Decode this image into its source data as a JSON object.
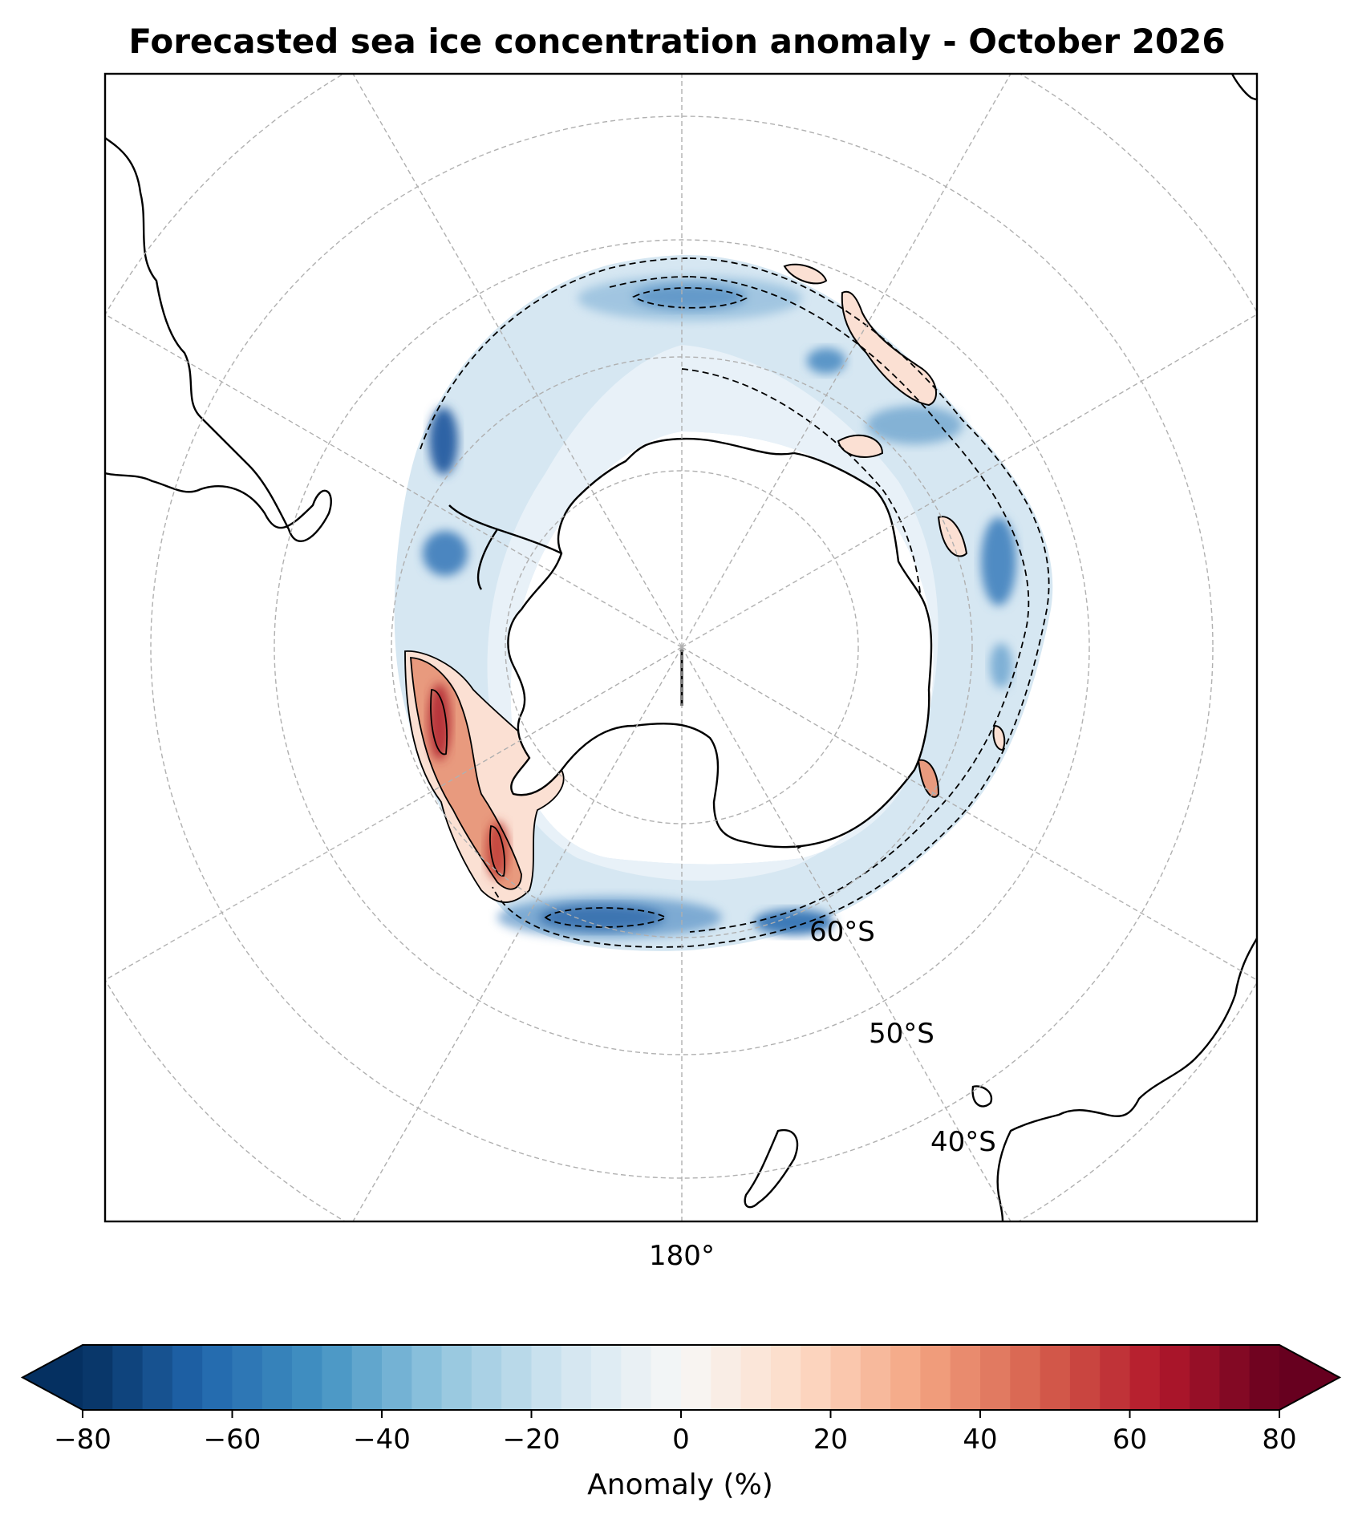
{
  "title": "Forecasted sea ice concentration anomaly - October 2026",
  "map": {
    "projection": "south-polar-stereographic",
    "gridlines": "dashed",
    "latitude_labels": [
      "60°S",
      "50°S",
      "40°S"
    ],
    "longitude_label": "180°",
    "colors": {
      "land_outline": "#000000",
      "gridline": "#b0b0b0",
      "neg_strong": "#1f4e92",
      "neg_mid": "#6fa5cf",
      "neg_weak": "#dcebf5",
      "pos_weak": "#fbe0d3",
      "pos_mid": "#e89a7e",
      "pos_strong": "#b8343a"
    }
  },
  "colorbar": {
    "label": "Anomaly (%)",
    "min": -80,
    "max": 80,
    "step": 4,
    "extend": "both",
    "colormap": "RdBu_r",
    "ticks": [
      -80,
      -60,
      -40,
      -20,
      0,
      20,
      40,
      60,
      80
    ],
    "tick_labels": [
      "−80",
      "−60",
      "−40",
      "−20",
      "0",
      "20",
      "40",
      "60",
      "80"
    ]
  }
}
